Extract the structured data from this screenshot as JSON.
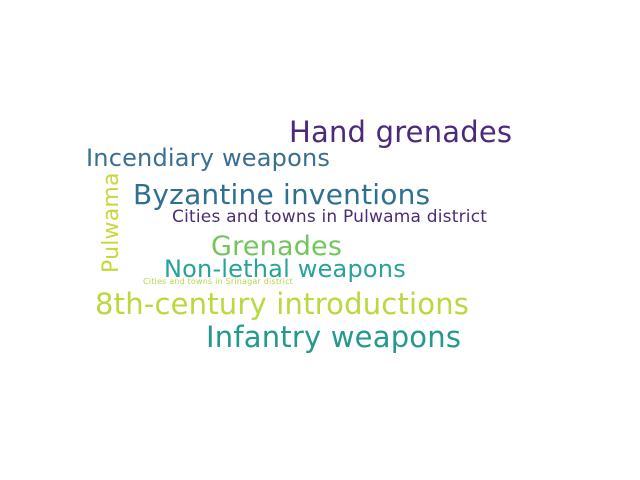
{
  "word_cloud": {
    "words": [
      {
        "text": "Hand grenades",
        "color": "#4b2a7b"
      },
      {
        "text": "Incendiary weapons",
        "color": "#3b6f91"
      },
      {
        "text": "Byzantine inventions",
        "color": "#2f7091"
      },
      {
        "text": "Pulwama",
        "color": "#c8d83a"
      },
      {
        "text": "Cities and towns in Pulwama district",
        "color": "#4b2d76"
      },
      {
        "text": "Grenades",
        "color": "#72c65c"
      },
      {
        "text": "Non-lethal weapons",
        "color": "#27a39a"
      },
      {
        "text": "Cities and towns in Srinagar district",
        "color": "#b5d748"
      },
      {
        "text": "8th-century introductions",
        "color": "#b9d93f"
      },
      {
        "text": "Infantry weapons",
        "color": "#23998f"
      }
    ]
  }
}
